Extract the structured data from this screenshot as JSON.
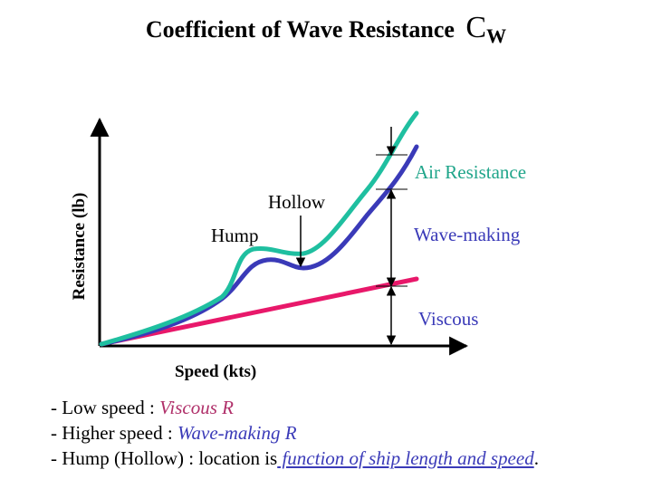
{
  "title": {
    "text": "Coefficient of Wave Resistance ",
    "symbol": "C",
    "subscript": "W"
  },
  "axes": {
    "ylabel": "Resistance (lb)",
    "xlabel": "Speed (kts)"
  },
  "labels": {
    "hump": "Hump",
    "hollow": "Hollow",
    "air": "Air Resistance",
    "wave": "Wave-making",
    "viscous": "Viscous"
  },
  "colors": {
    "total": "#1fbfa0",
    "wave": "#3a3ab8",
    "viscous": "#e8186a",
    "text_viscous": "#b0306a",
    "text_wave": "#3a3ab8",
    "text_link": "#3a3ab8"
  },
  "notes": [
    {
      "prefix": "- Low speed : ",
      "highlight": "Viscous R"
    },
    {
      "prefix": "- Higher speed : ",
      "highlight": "Wave-making R"
    },
    {
      "prefix": "- Hump (Hollow) : location is",
      "underlined": " function of ship length and speed",
      "suffix": "."
    }
  ],
  "chart_data": {
    "type": "line",
    "title": "Coefficient of Wave Resistance CW",
    "xlabel": "Speed (kts)",
    "ylabel": "Resistance (lb)",
    "series": [
      {
        "name": "Viscous",
        "shape": "increasing line"
      },
      {
        "name": "Wave-making",
        "shape": "curve with hump and hollow"
      },
      {
        "name": "Air Resistance",
        "shape": "total curve above wave-making"
      }
    ],
    "annotations": [
      "Hump",
      "Hollow",
      "Air Resistance",
      "Wave-making",
      "Viscous"
    ]
  }
}
